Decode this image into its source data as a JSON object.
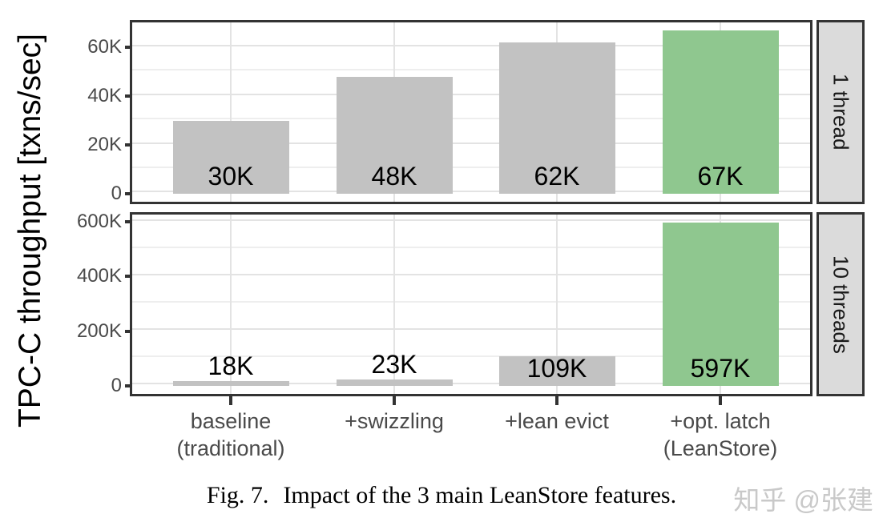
{
  "figure": {
    "caption_prefix": "Fig. 7.",
    "caption_text": "Impact of the 3 main LeanStore features.",
    "watermark": "知乎 @张建"
  },
  "colors": {
    "bar_default": "#c2c2c2",
    "bar_highlight": "#8fc78f",
    "panel_border": "#333333",
    "strip_bg": "#dbdbdb",
    "grid_major": "#e3e3e3",
    "grid_minor": "#eeeeee",
    "axis_text": "#4a4a4a",
    "watermark": "#c9c9c9"
  },
  "chart_data": {
    "type": "bar",
    "title": "Impact of the 3 main LeanStore features",
    "ylabel": "TPC-C throughput [txns/sec]",
    "xlabel": "",
    "grid": true,
    "legend": false,
    "categories": [
      "baseline (traditional)",
      "+swizzling",
      "+lean evict",
      "+opt. latch (LeanStore)"
    ],
    "category_lines": [
      [
        "baseline",
        "(traditional)"
      ],
      [
        "+swizzling"
      ],
      [
        "+lean evict"
      ],
      [
        "+opt. latch",
        "(LeanStore)"
      ]
    ],
    "facets": [
      {
        "label": "1 thread",
        "values": [
          30000,
          48000,
          62000,
          67000
        ],
        "bar_labels": [
          "30K",
          "48K",
          "62K",
          "67K"
        ],
        "highlight_index": 3,
        "ylim": [
          -3350,
          70350
        ],
        "y_major_ticks": [
          {
            "value": 0,
            "label": "0"
          },
          {
            "value": 20000,
            "label": "20K"
          },
          {
            "value": 40000,
            "label": "40K"
          },
          {
            "value": 60000,
            "label": "60K"
          }
        ],
        "y_minor": [
          10000,
          30000,
          50000
        ]
      },
      {
        "label": "10 threads",
        "values": [
          18000,
          23000,
          109000,
          597000
        ],
        "bar_labels": [
          "18K",
          "23K",
          "109K",
          "597K"
        ],
        "highlight_index": 3,
        "ylim": [
          -29850,
          626850
        ],
        "y_major_ticks": [
          {
            "value": 0,
            "label": "0"
          },
          {
            "value": 200000,
            "label": "200K"
          },
          {
            "value": 400000,
            "label": "400K"
          },
          {
            "value": 600000,
            "label": "600K"
          }
        ],
        "y_minor": [
          100000,
          300000,
          500000
        ]
      }
    ]
  }
}
